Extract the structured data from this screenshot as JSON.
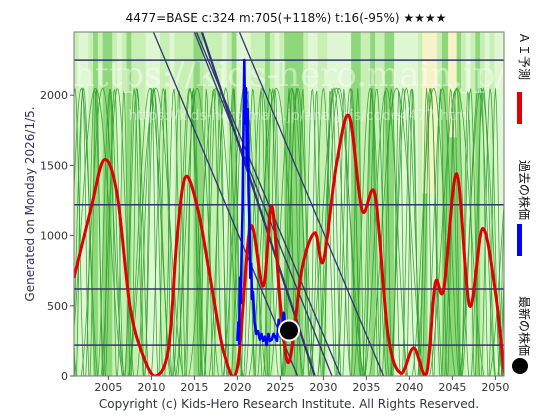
{
  "header": {
    "text": "4477=BASE    c:324  m:705(+118%)  t:16(-95%)  ★★★★"
  },
  "y_axis_label": "Generated on Monday 2026/1/5.",
  "footer": "Copyright (c) Kids-Hero Research Institute. All Rights Reserved.",
  "watermark": {
    "main": "https://kids-hero.main.jp/",
    "sub": "https://kids-hero.main.jp/analysis/code4477.html"
  },
  "legend": {
    "forecast": "ＡＩ予測",
    "past": "過去の株価",
    "latest": "最新の株価"
  },
  "colors": {
    "forecast": "#e00000",
    "past": "#0000ff",
    "latest": "#000000",
    "band_dark": "#8ed77a",
    "band_light": "#c9f0b4",
    "band_pale": "#dff7d2",
    "cream": "#f7f3c8",
    "thin_line": "#2fa02f",
    "guide_line": "#333377"
  },
  "chart_data": {
    "type": "line",
    "title": "4477=BASE    c:324  m:705(+118%)  t:16(-95%)  ★★★★",
    "x_range": [
      2001,
      2051
    ],
    "y_range": [
      0,
      2450
    ],
    "x_ticks": [
      2005,
      2010,
      2015,
      2020,
      2025,
      2030,
      2035,
      2040,
      2045,
      2050
    ],
    "y_ticks": [
      0,
      500,
      1000,
      1500,
      2000
    ],
    "horizontal_levels": [
      220,
      620,
      1220,
      2250
    ],
    "latest_point": {
      "x": 2026.0,
      "y": 324
    },
    "series": [
      {
        "name": "ＡＩ予測",
        "type": "line",
        "x": [
          2001,
          2003,
          2004.5,
          2006,
          2007.5,
          2009,
          2010.5,
          2012,
          2013,
          2014,
          2015.5,
          2017,
          2018.5,
          2020,
          2021.5,
          2023,
          2024,
          2025,
          2026,
          2027.5,
          2029,
          2030,
          2031.5,
          2033,
          2034.5,
          2036,
          2037.5,
          2039,
          2040.5,
          2042,
          2043,
          2044,
          2045.5,
          2047,
          2048.5,
          2050,
          2051
        ],
        "values": [
          700,
          1200,
          1540,
          1300,
          500,
          150,
          0,
          200,
          1000,
          1420,
          1160,
          640,
          150,
          60,
          1060,
          640,
          1210,
          510,
          100,
          760,
          1020,
          820,
          1500,
          1850,
          1180,
          1290,
          300,
          20,
          200,
          20,
          660,
          620,
          1440,
          500,
          1050,
          600,
          20
        ]
      },
      {
        "name": "過去の株価",
        "type": "line",
        "x": [
          2020.0,
          2020.1,
          2020.2,
          2020.3,
          2020.4,
          2020.5,
          2020.6,
          2020.7,
          2020.8,
          2020.9,
          2021.0,
          2021.1,
          2021.2,
          2021.3,
          2021.4,
          2021.5,
          2021.6,
          2021.7,
          2021.8,
          2022.0,
          2022.2,
          2022.4,
          2022.6,
          2022.8,
          2023.0,
          2023.2,
          2023.4,
          2023.6,
          2023.8,
          2024.0,
          2024.2,
          2024.4,
          2024.6,
          2024.8,
          2025.0,
          2025.2,
          2025.4,
          2025.6,
          2025.8,
          2026.0
        ],
        "values": [
          250,
          380,
          230,
          700,
          520,
          900,
          1200,
          1700,
          2250,
          1800,
          2050,
          1500,
          1900,
          1300,
          1100,
          700,
          800,
          550,
          600,
          380,
          300,
          320,
          260,
          300,
          250,
          280,
          220,
          300,
          250,
          260,
          300,
          280,
          250,
          400,
          280,
          330,
          450,
          300,
          340,
          324
        ]
      }
    ],
    "thin_cycles": {
      "type": "line",
      "periods": [
        1.6,
        2.3,
        3.1,
        4.2,
        5.5,
        7.0
      ],
      "amplitude": 1050,
      "offset": 1000
    },
    "diagonal_guides": [
      {
        "from": [
          2001,
          3800
        ],
        "to": [
          2027,
          0
        ]
      },
      {
        "from": [
          2006,
          3800
        ],
        "to": [
          2032,
          0
        ]
      },
      {
        "from": [
          2011,
          3800
        ],
        "to": [
          2037,
          0
        ]
      },
      {
        "from": [
          2014,
          2800
        ],
        "to": [
          2029,
          0
        ]
      },
      {
        "from": [
          2015,
          2450
        ],
        "to": [
          2031,
          0
        ]
      }
    ]
  }
}
